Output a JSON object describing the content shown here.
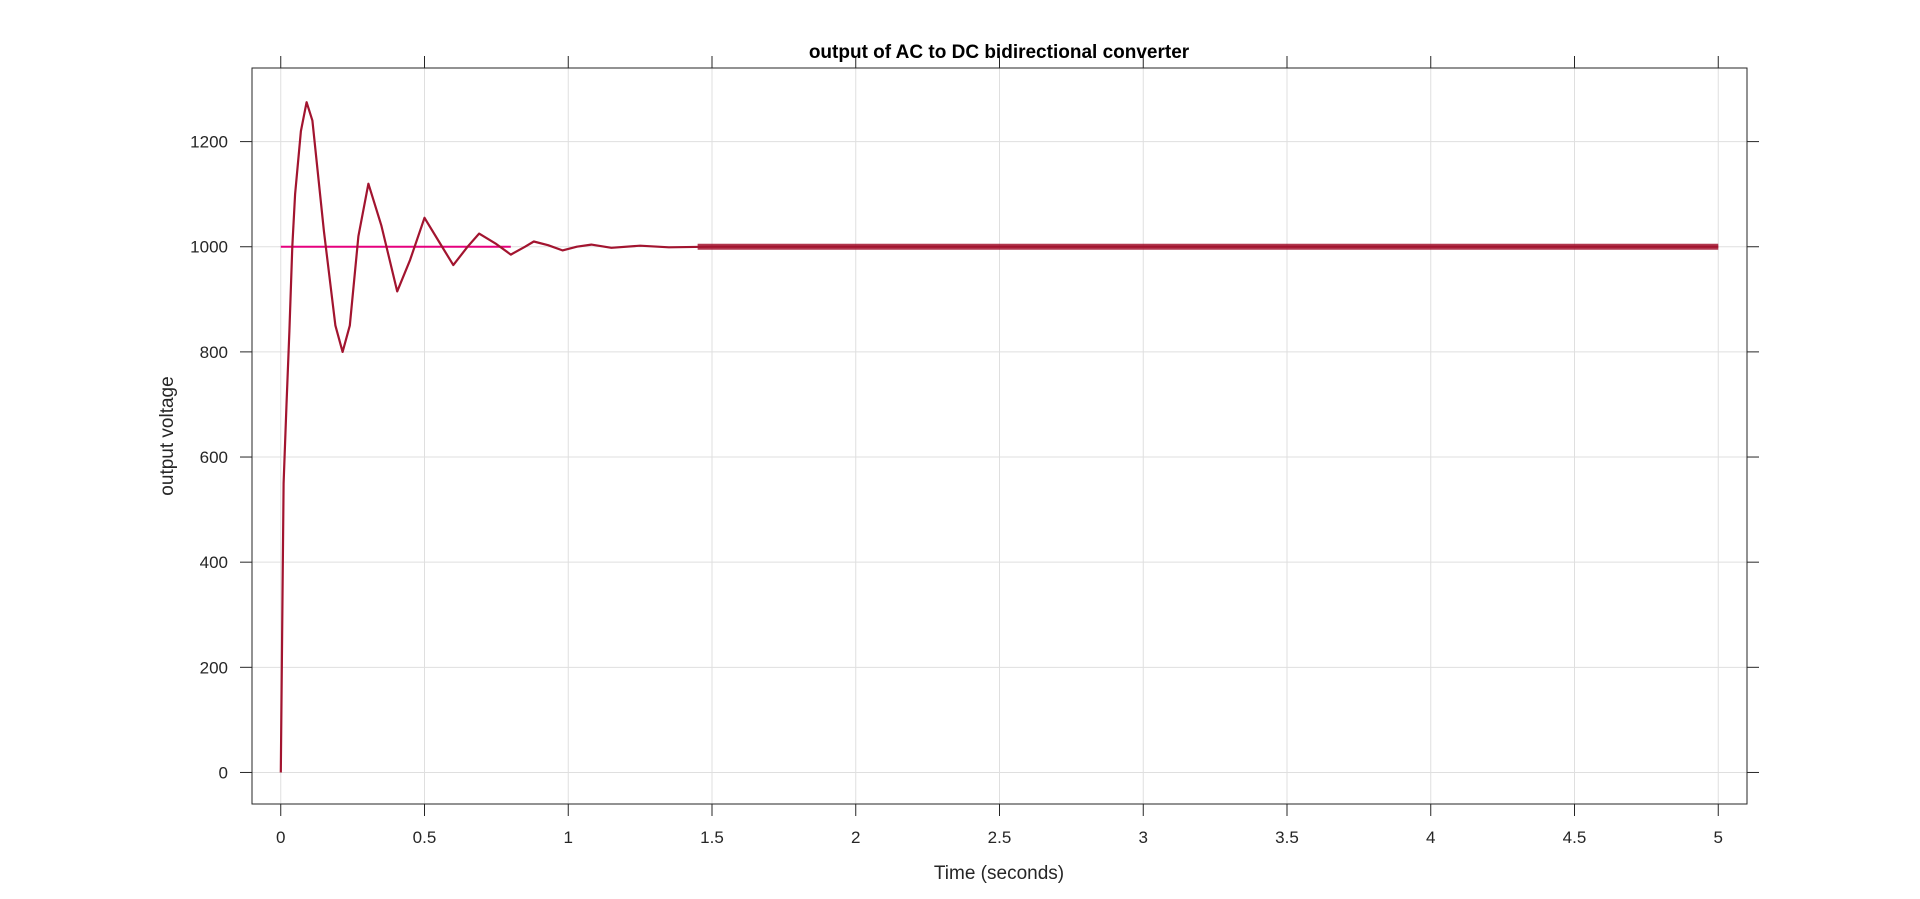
{
  "chart_data": {
    "type": "line",
    "title": "output of AC to DC bidirectional converter",
    "xlabel": "Time (seconds)",
    "ylabel": "output voltage",
    "xlim": [
      -0.1,
      5.1
    ],
    "ylim": [
      -60,
      1340
    ],
    "x_ticks": [
      0,
      0.5,
      1,
      1.5,
      2,
      2.5,
      3,
      3.5,
      4,
      4.5,
      5
    ],
    "x_tick_labels": [
      "0",
      "0.5",
      "1",
      "1.5",
      "2",
      "2.5",
      "3",
      "3.5",
      "4",
      "4.5",
      "5"
    ],
    "y_ticks": [
      0,
      200,
      400,
      600,
      800,
      1000,
      1200
    ],
    "y_tick_labels": [
      "0",
      "200",
      "400",
      "600",
      "800",
      "1000",
      "1200"
    ],
    "grid": true,
    "series": [
      {
        "color": "#e6007e",
        "x": [
          0,
          0.8
        ],
        "y": [
          1000,
          1000
        ]
      },
      {
        "color": "#a2142f",
        "x": [
          0,
          0.01,
          0.02,
          0.03,
          0.04,
          0.05,
          0.07,
          0.09,
          0.11,
          0.15,
          0.19,
          0.215,
          0.24,
          0.27,
          0.305,
          0.35,
          0.405,
          0.45,
          0.5,
          0.55,
          0.6,
          0.65,
          0.69,
          0.75,
          0.8,
          0.85,
          0.88,
          0.93,
          0.98,
          1.03,
          1.08,
          1.15,
          1.25,
          1.35,
          1.5,
          5.0
        ],
        "y": [
          0,
          550,
          700,
          840,
          1000,
          1100,
          1220,
          1275,
          1240,
          1030,
          850,
          800,
          850,
          1020,
          1120,
          1040,
          915,
          975,
          1055,
          1010,
          965,
          1000,
          1025,
          1005,
          985,
          1000,
          1010,
          1003,
          993,
          1000,
          1004,
          998,
          1002,
          999,
          1000,
          1000
        ]
      }
    ]
  }
}
